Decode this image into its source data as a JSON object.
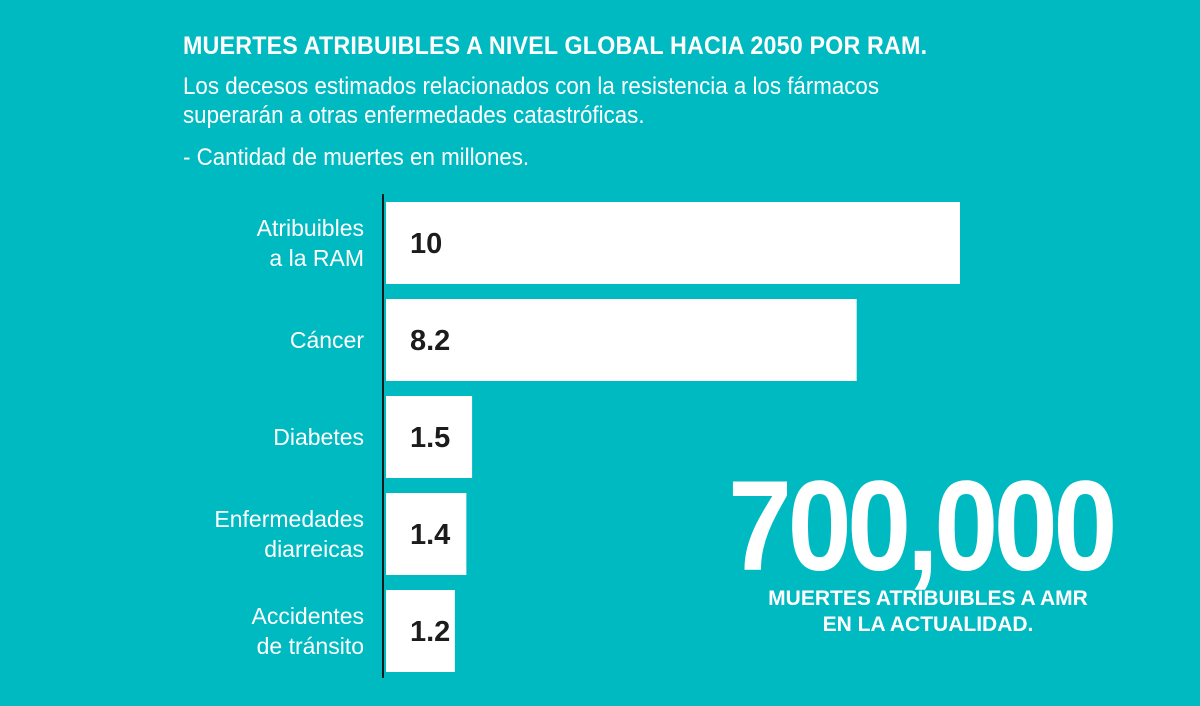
{
  "header": {
    "title": "MUERTES ATRIBUIBLES A NIVEL GLOBAL HACIA 2050 POR RAM.",
    "subtitle": "Los decesos estimados relacionados con la resistencia a los fármacos superarán a otras enfermedades catastróficas.",
    "unit_note": "- Cantidad de muertes en millones."
  },
  "chart_data": {
    "type": "bar",
    "orientation": "horizontal",
    "categories": [
      [
        "Atribuibles",
        "a la RAM"
      ],
      [
        "Cáncer"
      ],
      [
        "Diabetes"
      ],
      [
        "Enfermedades",
        "diarreicas"
      ],
      [
        "Accidentes",
        "de tránsito"
      ]
    ],
    "values": [
      10,
      8.2,
      1.5,
      1.4,
      1.2
    ],
    "value_labels": [
      "10",
      "8.2",
      "1.5",
      "1.4",
      "1.2"
    ],
    "bar_color": "#ffffff",
    "background_color": "#00bac2",
    "axis_color": "#1a1a1a",
    "grid": false
  },
  "callout": {
    "number": "700,000",
    "caption_line1": "MUERTES ATRIBUIBLES A AMR",
    "caption_line2": "EN LA ACTUALIDAD."
  }
}
